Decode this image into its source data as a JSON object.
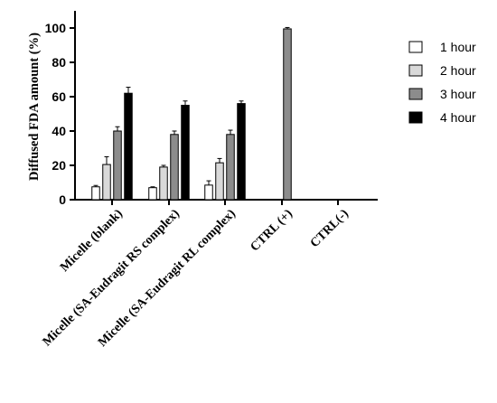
{
  "chart_data": {
    "type": "bar",
    "title": "",
    "xlabel": "",
    "ylabel": "Diffused FDA amount (%)",
    "ylim": [
      0,
      110
    ],
    "yticks": [
      0,
      20,
      40,
      60,
      80,
      100
    ],
    "grid": false,
    "legend_position": "right",
    "categories": [
      "Micelle (blank)",
      "Micelle (SA-Eudragit RS complex)",
      "Micelle (SA-Eudragit RL complex)",
      "CTRL (+)",
      "CTRL(-)"
    ],
    "series": [
      {
        "name": "1 hour",
        "color": "#ffffff",
        "values": [
          7.5,
          7,
          8.5,
          null,
          null
        ],
        "errors": [
          0.8,
          0.5,
          2.5,
          null,
          null
        ]
      },
      {
        "name": "2 hour",
        "color": "#d9d9d9",
        "values": [
          20.5,
          19,
          21.5,
          null,
          null
        ],
        "errors": [
          4.5,
          1,
          2.5,
          null,
          null
        ]
      },
      {
        "name": "3 hour",
        "color": "#8c8c8c",
        "values": [
          40,
          38,
          38,
          99.5,
          null
        ],
        "errors": [
          2.5,
          2,
          2.5,
          0.8,
          null
        ]
      },
      {
        "name": "4 hour",
        "color": "#000000",
        "values": [
          62,
          55,
          56,
          null,
          null
        ],
        "errors": [
          3.5,
          2.5,
          1.5,
          null,
          null
        ]
      }
    ]
  }
}
